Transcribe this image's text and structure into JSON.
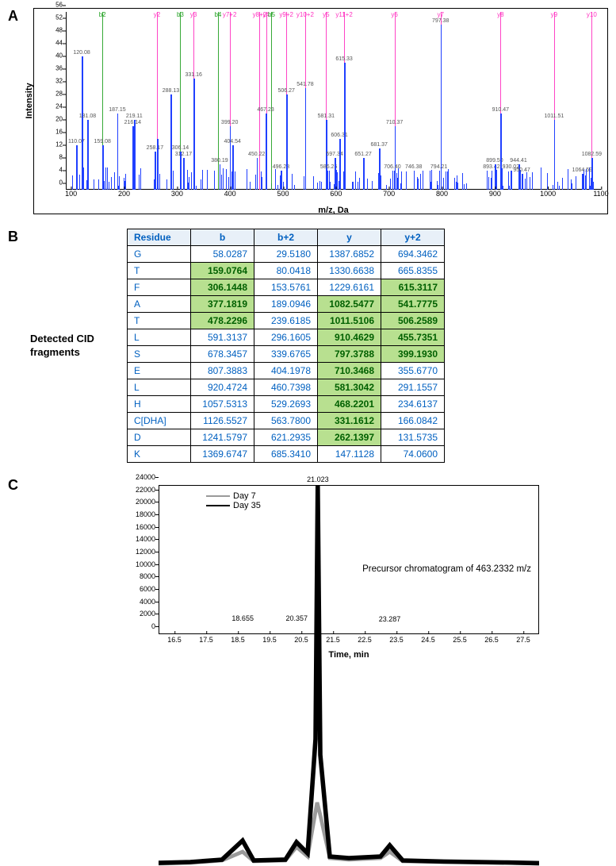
{
  "panelA": {
    "label": "A",
    "type": "mass-spectrum",
    "xlabel": "m/z, Da",
    "ylabel": "Intensity",
    "xlim": [
      90,
      1100
    ],
    "ylim": [
      0,
      56
    ],
    "yticks": [
      0,
      4,
      8,
      12,
      16,
      20,
      24,
      28,
      32,
      36,
      40,
      44,
      48,
      52,
      56
    ],
    "xticks": [
      100,
      200,
      300,
      400,
      500,
      600,
      700,
      800,
      900,
      1000,
      1100
    ],
    "peak_color": "#2040ff",
    "label_color": "#606060",
    "ion_colors": {
      "b": "#20a020",
      "y": "#ff30c0",
      "y+2": "#ff30c0",
      "b+y": "#20a020"
    },
    "peaks": [
      {
        "mz": 110.07,
        "i": 14,
        "label": "110.07"
      },
      {
        "mz": 120.08,
        "i": 42,
        "label": "120.08"
      },
      {
        "mz": 131.08,
        "i": 22,
        "label": "131.08"
      },
      {
        "mz": 159.08,
        "i": 14,
        "label": "159.08"
      },
      {
        "mz": 187.15,
        "i": 24,
        "label": "187.15"
      },
      {
        "mz": 216.14,
        "i": 20,
        "label": "216.14"
      },
      {
        "mz": 219.11,
        "i": 22,
        "label": "219.11"
      },
      {
        "mz": 258.17,
        "i": 12,
        "label": "258.17"
      },
      {
        "mz": 262.14,
        "i": 16
      },
      {
        "mz": 288.13,
        "i": 30,
        "label": "288.13"
      },
      {
        "mz": 306.14,
        "i": 12,
        "label": "306.14"
      },
      {
        "mz": 312.17,
        "i": 10,
        "label": "312.17"
      },
      {
        "mz": 331.16,
        "i": 35,
        "label": "331.16"
      },
      {
        "mz": 380.19,
        "i": 8,
        "label": "380.19"
      },
      {
        "mz": 399.2,
        "i": 20,
        "label": "399.20"
      },
      {
        "mz": 404.54,
        "i": 14,
        "label": "404.54"
      },
      {
        "mz": 450.22,
        "i": 10,
        "label": "450.22"
      },
      {
        "mz": 467.23,
        "i": 24,
        "label": "467.23"
      },
      {
        "mz": 468.22,
        "i": 8
      },
      {
        "mz": 496.23,
        "i": 6,
        "label": "496.23"
      },
      {
        "mz": 506.27,
        "i": 30,
        "label": "506.27"
      },
      {
        "mz": 541.78,
        "i": 32,
        "label": "541.78"
      },
      {
        "mz": 581.31,
        "i": 22,
        "label": "581.31"
      },
      {
        "mz": 586.25,
        "i": 6,
        "label": "586.25"
      },
      {
        "mz": 597.34,
        "i": 10,
        "label": "597.34"
      },
      {
        "mz": 606.31,
        "i": 16,
        "label": "606.31"
      },
      {
        "mz": 615.33,
        "i": 40,
        "label": "615.33"
      },
      {
        "mz": 651.27,
        "i": 10,
        "label": "651.27"
      },
      {
        "mz": 681.37,
        "i": 13,
        "label": "681.37"
      },
      {
        "mz": 710.37,
        "i": 20,
        "label": "710.37"
      },
      {
        "mz": 706.4,
        "i": 6,
        "label": "706.40"
      },
      {
        "mz": 746.38,
        "i": 6,
        "label": "746.38"
      },
      {
        "mz": 794.21,
        "i": 6,
        "label": "794.21"
      },
      {
        "mz": 797.38,
        "i": 52,
        "label": "797.38"
      },
      {
        "mz": 893.42,
        "i": 6,
        "label": "893.42"
      },
      {
        "mz": 899.5,
        "i": 8,
        "label": "899.50"
      },
      {
        "mz": 910.47,
        "i": 24,
        "label": "910.47"
      },
      {
        "mz": 930.02,
        "i": 6,
        "label": "930.02"
      },
      {
        "mz": 944.41,
        "i": 8,
        "label": "944.41"
      },
      {
        "mz": 950.47,
        "i": 5,
        "label": "950.47"
      },
      {
        "mz": 1011.51,
        "i": 22,
        "label": "1011.51"
      },
      {
        "mz": 1064.59,
        "i": 5,
        "label": "1064.59"
      },
      {
        "mz": 1082.59,
        "i": 10,
        "label": "1082.59"
      }
    ],
    "ion_lines": [
      {
        "mz": 159.08,
        "label": "b2",
        "series": "b"
      },
      {
        "mz": 262.14,
        "label": "y2",
        "series": "y"
      },
      {
        "mz": 306.14,
        "label": "b3",
        "series": "b"
      },
      {
        "mz": 331.16,
        "label": "y3",
        "series": "y"
      },
      {
        "mz": 377.18,
        "label": "b4",
        "series": "b"
      },
      {
        "mz": 399.19,
        "label": "y7+2",
        "series": "y"
      },
      {
        "mz": 455.74,
        "label": "y8+2",
        "series": "y"
      },
      {
        "mz": 468.22,
        "label": "y4",
        "series": "y"
      },
      {
        "mz": 478.23,
        "label": "b5",
        "series": "b"
      },
      {
        "mz": 506.26,
        "label": "y9+2",
        "series": "y"
      },
      {
        "mz": 541.78,
        "label": "y10+2",
        "series": "y"
      },
      {
        "mz": 581.3,
        "label": "y5",
        "series": "y"
      },
      {
        "mz": 615.31,
        "label": "y11+2",
        "series": "y"
      },
      {
        "mz": 710.35,
        "label": "y6",
        "series": "y"
      },
      {
        "mz": 797.38,
        "label": "y7",
        "series": "y"
      },
      {
        "mz": 910.46,
        "label": "y8",
        "series": "y"
      },
      {
        "mz": 1011.51,
        "label": "y9",
        "series": "y"
      },
      {
        "mz": 1082.55,
        "label": "y10",
        "series": "y"
      }
    ],
    "noise_density": 160
  },
  "panelB": {
    "label": "B",
    "side_title": "Detected CID fragments",
    "type": "table",
    "header_bg": "#e8f0f8",
    "header_fg": "#0060c0",
    "cell_fg": "#0060c0",
    "hit_bg": "#b8e090",
    "hit_fg": "#006000",
    "columns": [
      "Residue",
      "b",
      "b+2",
      "y",
      "y+2"
    ],
    "rows": [
      {
        "res": "G",
        "b": "58.0287",
        "b2": "29.5180",
        "y": "1387.6852",
        "y2": "694.3462",
        "hits": []
      },
      {
        "res": "T",
        "b": "159.0764",
        "b2": "80.0418",
        "y": "1330.6638",
        "y2": "665.8355",
        "hits": [
          "b"
        ]
      },
      {
        "res": "F",
        "b": "306.1448",
        "b2": "153.5761",
        "y": "1229.6161",
        "y2": "615.3117",
        "hits": [
          "b",
          "y2"
        ]
      },
      {
        "res": "A",
        "b": "377.1819",
        "b2": "189.0946",
        "y": "1082.5477",
        "y2": "541.7775",
        "hits": [
          "b",
          "y",
          "y2"
        ]
      },
      {
        "res": "T",
        "b": "478.2296",
        "b2": "239.6185",
        "y": "1011.5106",
        "y2": "506.2589",
        "hits": [
          "b",
          "y",
          "y2"
        ]
      },
      {
        "res": "L",
        "b": "591.3137",
        "b2": "296.1605",
        "y": "910.4629",
        "y2": "455.7351",
        "hits": [
          "y",
          "y2"
        ]
      },
      {
        "res": "S",
        "b": "678.3457",
        "b2": "339.6765",
        "y": "797.3788",
        "y2": "399.1930",
        "hits": [
          "y",
          "y2"
        ]
      },
      {
        "res": "E",
        "b": "807.3883",
        "b2": "404.1978",
        "y": "710.3468",
        "y2": "355.6770",
        "hits": [
          "y"
        ]
      },
      {
        "res": "L",
        "b": "920.4724",
        "b2": "460.7398",
        "y": "581.3042",
        "y2": "291.1557",
        "hits": [
          "y"
        ]
      },
      {
        "res": "H",
        "b": "1057.5313",
        "b2": "529.2693",
        "y": "468.2201",
        "y2": "234.6137",
        "hits": [
          "y"
        ]
      },
      {
        "res": "C[DHA]",
        "b": "1126.5527",
        "b2": "563.7800",
        "y": "331.1612",
        "y2": "166.0842",
        "hits": [
          "y"
        ]
      },
      {
        "res": "D",
        "b": "1241.5797",
        "b2": "621.2935",
        "y": "262.1397",
        "y2": "131.5735",
        "hits": [
          "y"
        ]
      },
      {
        "res": "K",
        "b": "1369.6747",
        "b2": "685.3410",
        "y": "147.1128",
        "y2": "74.0600",
        "hits": []
      }
    ]
  },
  "panelC": {
    "label": "C",
    "type": "chromatogram",
    "xlabel": "Time, min",
    "xlim": [
      16.0,
      28.0
    ],
    "ylim": [
      0,
      24000
    ],
    "yticks": [
      0,
      2000,
      4000,
      6000,
      8000,
      10000,
      12000,
      14000,
      16000,
      18000,
      20000,
      22000,
      24000
    ],
    "xticks": [
      16.5,
      17.5,
      18.5,
      19.5,
      20.5,
      21.5,
      22.5,
      23.5,
      24.5,
      25.5,
      26.5,
      27.5
    ],
    "series": [
      {
        "name": "Day 7",
        "color": "#9a9a9a",
        "width": 1.2,
        "points": [
          [
            16.0,
            150
          ],
          [
            17.0,
            200
          ],
          [
            18.0,
            350
          ],
          [
            18.65,
            900
          ],
          [
            19.0,
            300
          ],
          [
            20.0,
            350
          ],
          [
            20.35,
            1200
          ],
          [
            20.7,
            600
          ],
          [
            21.0,
            4000
          ],
          [
            21.1,
            3200
          ],
          [
            21.4,
            500
          ],
          [
            22.0,
            400
          ],
          [
            23.0,
            500
          ],
          [
            23.29,
            900
          ],
          [
            23.7,
            300
          ],
          [
            25.0,
            250
          ],
          [
            27.0,
            200
          ],
          [
            28.0,
            150
          ]
        ]
      },
      {
        "name": "Day 35",
        "color": "#000000",
        "width": 1.4,
        "points": [
          [
            16.0,
            200
          ],
          [
            17.0,
            250
          ],
          [
            18.0,
            400
          ],
          [
            18.65,
            1600
          ],
          [
            19.0,
            350
          ],
          [
            20.0,
            400
          ],
          [
            20.35,
            1500
          ],
          [
            20.7,
            800
          ],
          [
            20.95,
            8000
          ],
          [
            21.02,
            24000
          ],
          [
            21.1,
            7000
          ],
          [
            21.4,
            600
          ],
          [
            22.0,
            500
          ],
          [
            23.0,
            600
          ],
          [
            23.29,
            1300
          ],
          [
            23.7,
            350
          ],
          [
            25.0,
            280
          ],
          [
            27.0,
            220
          ],
          [
            28.0,
            180
          ]
        ]
      }
    ],
    "peak_labels": [
      {
        "t": 18.655,
        "y": 1700,
        "text": "18.655"
      },
      {
        "t": 20.357,
        "y": 1700,
        "text": "20.357"
      },
      {
        "t": 21.023,
        "y": 24000,
        "text": "21.023"
      },
      {
        "t": 23.287,
        "y": 1500,
        "text": "23.287"
      }
    ],
    "precursor_text": "Precursor chromatogram of 463.2332 m/z",
    "legend": [
      {
        "label": "Day 7",
        "color": "#9a9a9a"
      },
      {
        "label": "Day 35",
        "color": "#000000"
      }
    ]
  }
}
